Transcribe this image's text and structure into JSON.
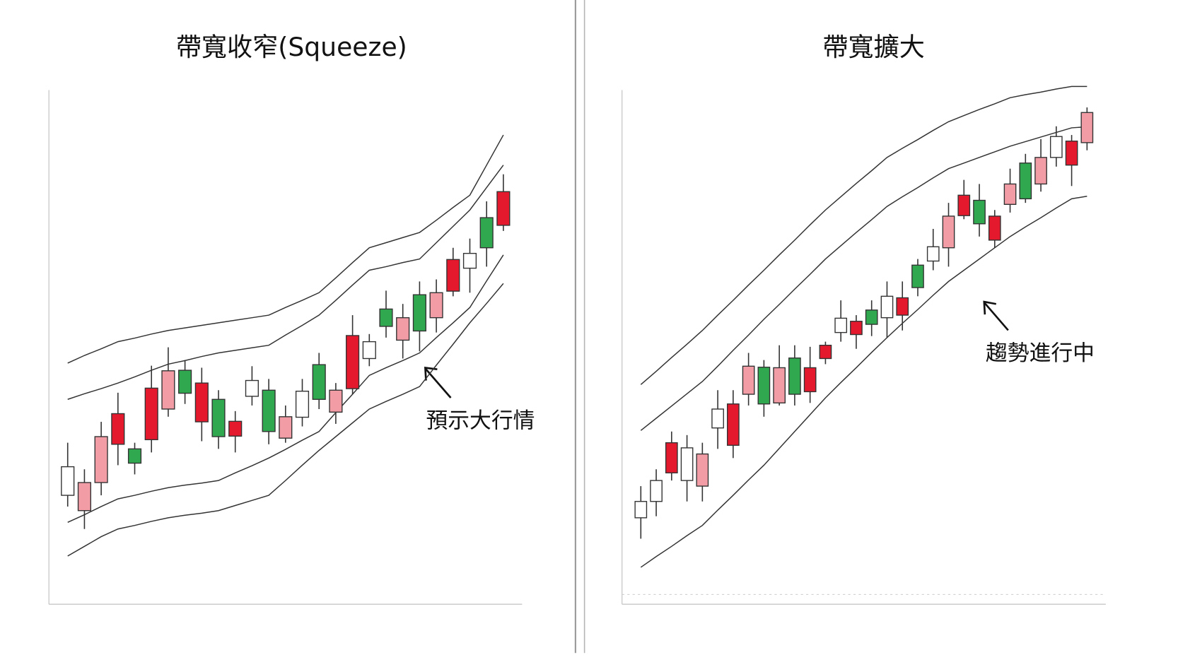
{
  "chart_data": [
    {
      "type": "candlestick",
      "title": "帶寬收窄(Squeeze)",
      "annotation": "預示大行情",
      "ylim": [
        0,
        100
      ],
      "open": [
        20.6,
        23.1,
        32.1,
        36.6,
        26.9,
        41.6,
        45.0,
        40.6,
        42.6,
        32.1,
        35.1,
        40.0,
        33.1,
        36.0,
        35.9,
        39.4,
        41.2,
        51.9,
        47.4,
        53.7,
        55.4,
        52.8,
        60.3,
        66.8,
        65.1,
        69.1,
        80.1
      ],
      "high": [
        30.9,
        25.7,
        35.0,
        40.7,
        30.9,
        46.0,
        49.6,
        47.1,
        45.6,
        41.2,
        37.1,
        45.9,
        43.4,
        38.2,
        43.4,
        48.5,
        42.6,
        55.9,
        52.2,
        60.7,
        58.1,
        62.5,
        62.9,
        69.1,
        70.9,
        78.2,
        83.5
      ],
      "low": [
        18.4,
        14.0,
        20.6,
        26.5,
        24.7,
        29.0,
        36.0,
        38.5,
        31.2,
        29.7,
        29.0,
        38.2,
        30.6,
        30.9,
        34.1,
        37.5,
        34.6,
        40.4,
        45.9,
        51.5,
        47.4,
        48.8,
        52.5,
        59.6,
        60.3,
        65.4,
        72.4
      ],
      "close": [
        26.2,
        17.6,
        23.1,
        30.6,
        29.7,
        31.5,
        37.5,
        45.1,
        35.0,
        39.4,
        32.2,
        43.1,
        41.2,
        31.8,
        41.0,
        46.2,
        36.9,
        41.5,
        50.7,
        57.1,
        51.0,
        59.9,
        55.4,
        60.6,
        68.0,
        75.0,
        73.5
      ],
      "colors": [
        "#ffffff",
        "#f29ca6",
        "#f29ca6",
        "#e4192d",
        "#2fa84f",
        "#e4192d",
        "#f29ca6",
        "#2fa84f",
        "#e4192d",
        "#2fa84f",
        "#e4192d",
        "#ffffff",
        "#2fa84f",
        "#f29ca6",
        "#ffffff",
        "#2fa84f",
        "#f29ca6",
        "#e4192d",
        "#ffffff",
        "#2fa84f",
        "#f29ca6",
        "#2fa84f",
        "#f29ca6",
        "#e4192d",
        "#ffffff",
        "#2fa84f",
        "#e4192d"
      ],
      "band_lines": [
        {
          "values": [
            46.5,
            48.0,
            49.3,
            50.7,
            51.4,
            52.2,
            52.9,
            53.4,
            53.9,
            54.4,
            54.9,
            55.4,
            55.9,
            57.4,
            58.8,
            60.3,
            63.2,
            66.2,
            69.1,
            70.1,
            71.1,
            72.1,
            74.5,
            77.0,
            79.4,
            85.3,
            91.2
          ]
        },
        {
          "values": [
            39.4,
            40.5,
            41.5,
            42.6,
            43.8,
            45.1,
            46.3,
            47.0,
            47.8,
            48.5,
            49.0,
            49.5,
            50.0,
            52.0,
            53.9,
            55.9,
            58.8,
            61.8,
            64.7,
            65.4,
            66.2,
            66.9,
            70.1,
            73.3,
            76.5,
            80.9,
            85.3
          ]
        },
        {
          "values": [
            15.3,
            16.8,
            18.4,
            19.9,
            20.6,
            21.4,
            22.1,
            22.6,
            23.0,
            23.5,
            25.0,
            26.4,
            27.9,
            29.6,
            31.4,
            33.1,
            36.8,
            40.4,
            44.1,
            45.6,
            47.0,
            48.5,
            51.5,
            54.4,
            57.4,
            62.6,
            67.7
          ]
        },
        {
          "values": [
            8.7,
            10.6,
            12.5,
            14.0,
            14.7,
            15.5,
            16.2,
            16.7,
            17.1,
            17.6,
            18.6,
            19.6,
            20.6,
            23.5,
            26.5,
            29.4,
            32.1,
            34.8,
            37.5,
            39.0,
            40.4,
            41.9,
            46.1,
            50.2,
            54.4,
            58.2,
            62.1
          ]
        }
      ]
    },
    {
      "type": "candlestick",
      "title": "帶寬擴大",
      "annotation": "趨勢進行中",
      "ylim": [
        0,
        100
      ],
      "open": [
        16.2,
        19.4,
        30.9,
        23.5,
        28.7,
        33.8,
        38.5,
        45.9,
        38.5,
        45.6,
        40.4,
        45.6,
        50.0,
        52.5,
        54.7,
        54.1,
        55.4,
        59.3,
        61.3,
        66.5,
        75.3,
        79.4,
        73.8,
        75.3,
        81.6,
        78.7,
        86.8,
        86.8,
        90.0,
        95.6
      ],
      "high": [
        22.4,
        25.7,
        33.1,
        32.4,
        30.9,
        41.2,
        41.2,
        48.5,
        47.1,
        50.0,
        50.0,
        49.7,
        50.7,
        58.8,
        55.9,
        58.8,
        62.5,
        62.5,
        66.9,
        72.8,
        77.9,
        82.4,
        81.6,
        76.5,
        84.6,
        87.5,
        90.4,
        92.9,
        91.2,
        96.6
      ],
      "low": [
        12.1,
        16.5,
        23.5,
        19.4,
        19.4,
        29.7,
        27.9,
        38.2,
        36.0,
        38.2,
        38.2,
        38.7,
        46.3,
        50.7,
        49.3,
        51.8,
        51.5,
        52.9,
        59.6,
        64.7,
        65.4,
        74.7,
        71.3,
        69.1,
        76.0,
        77.9,
        80.1,
        85.0,
        81.2,
        88.2
      ],
      "close": [
        19.4,
        23.5,
        25.0,
        29.9,
        22.4,
        37.5,
        30.4,
        40.4,
        45.7,
        38.7,
        47.5,
        40.9,
        47.4,
        55.3,
        52.1,
        56.9,
        59.6,
        55.9,
        65.7,
        69.3,
        69.1,
        75.4,
        78.4,
        70.6,
        77.6,
        85.7,
        81.6,
        90.9,
        85.3,
        89.7
      ],
      "colors": [
        "#ffffff",
        "#ffffff",
        "#e4192d",
        "#ffffff",
        "#f29ca6",
        "#ffffff",
        "#e4192d",
        "#f29ca6",
        "#2fa84f",
        "#f29ca6",
        "#2fa84f",
        "#e4192d",
        "#e4192d",
        "#ffffff",
        "#e4192d",
        "#2fa84f",
        "#ffffff",
        "#e4192d",
        "#2fa84f",
        "#ffffff",
        "#f29ca6",
        "#e4192d",
        "#2fa84f",
        "#e4192d",
        "#f29ca6",
        "#2fa84f",
        "#f29ca6",
        "#ffffff",
        "#e4192d",
        "#f29ca6"
      ],
      "band_lines": [
        {
          "values": [
            42.3,
            44.9,
            47.6,
            50.2,
            52.9,
            55.9,
            58.8,
            61.8,
            64.7,
            67.7,
            70.6,
            73.6,
            76.5,
            79.1,
            81.7,
            84.2,
            86.8,
            88.6,
            90.3,
            92.1,
            93.8,
            95.0,
            96.2,
            97.3,
            98.5,
            99.1,
            99.6,
            100.2,
            100.7,
            100.7
          ]
        },
        {
          "values": [
            33.3,
            35.7,
            38.1,
            40.5,
            42.9,
            45.9,
            49.0,
            52.0,
            55.1,
            58.0,
            61.0,
            63.9,
            66.9,
            69.5,
            72.1,
            74.6,
            77.2,
            79.1,
            80.9,
            82.8,
            84.6,
            85.7,
            86.8,
            87.9,
            89.0,
            89.9,
            90.8,
            91.7,
            92.6,
            92.8
          ]
        },
        {
          "values": [
            6.5,
            8.6,
            10.6,
            12.7,
            14.7,
            17.7,
            20.6,
            23.6,
            26.5,
            29.8,
            33.1,
            36.4,
            39.7,
            42.7,
            45.6,
            48.6,
            51.5,
            54.3,
            57.0,
            59.8,
            62.5,
            64.7,
            66.9,
            69.1,
            71.3,
            73.2,
            75.0,
            76.9,
            78.7,
            79.2
          ]
        }
      ]
    }
  ]
}
